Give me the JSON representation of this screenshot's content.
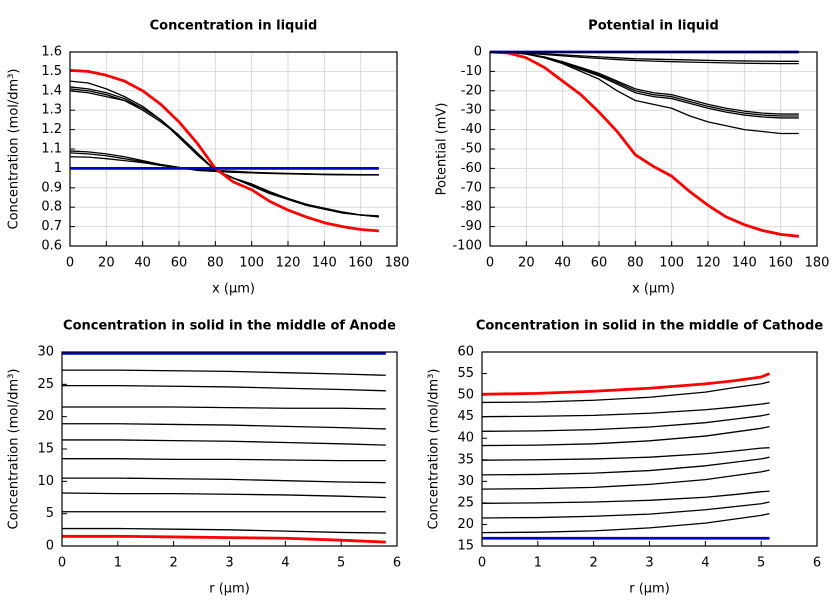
{
  "chart_data": [
    {
      "type": "line",
      "title": "Concentration in liquid",
      "xlabel": "x (µm)",
      "ylabel": "Concentration (mol/dm³)",
      "x": [
        0,
        10,
        20,
        30,
        40,
        50,
        60,
        70,
        80,
        90,
        100,
        110,
        120,
        130,
        140,
        150,
        160,
        170
      ],
      "xlim": [
        0,
        180
      ],
      "xticks": [
        0,
        20,
        40,
        60,
        80,
        100,
        120,
        140,
        160,
        180
      ],
      "ylim": [
        0.6,
        1.6
      ],
      "yticks": [
        0.6,
        0.7,
        0.8,
        0.9,
        1,
        1.1,
        1.2,
        1.3,
        1.4,
        1.5,
        1.6
      ],
      "grid": true,
      "series": [
        {
          "color": "#000000",
          "values": [
            1.45,
            1.44,
            1.41,
            1.37,
            1.32,
            1.25,
            1.16,
            1.07,
            0.99,
            0.95,
            0.91,
            0.87,
            0.84,
            0.81,
            0.79,
            0.77,
            0.76,
            0.755
          ]
        },
        {
          "color": "#000000",
          "values": [
            1.42,
            1.41,
            1.39,
            1.36,
            1.31,
            1.25,
            1.17,
            1.08,
            0.99,
            0.95,
            0.915,
            0.875,
            0.84,
            0.81,
            0.79,
            0.775,
            0.76,
            0.75
          ]
        },
        {
          "color": "#000000",
          "values": [
            1.41,
            1.4,
            1.38,
            1.35,
            1.31,
            1.25,
            1.17,
            1.08,
            0.99,
            0.95,
            0.915,
            0.875,
            0.845,
            0.815,
            0.79,
            0.77,
            0.76,
            0.75
          ]
        },
        {
          "color": "#000000",
          "values": [
            1.4,
            1.39,
            1.37,
            1.35,
            1.3,
            1.24,
            1.17,
            1.08,
            0.99,
            0.95,
            0.92,
            0.88,
            0.845,
            0.815,
            0.795,
            0.775,
            0.76,
            0.752
          ]
        },
        {
          "color": "#000000",
          "values": [
            1.09,
            1.085,
            1.075,
            1.06,
            1.04,
            1.02,
            1.005,
            0.99,
            0.985,
            0.98,
            0.978,
            0.975,
            0.973,
            0.971,
            0.969,
            0.968,
            0.967,
            0.967
          ]
        },
        {
          "color": "#000000",
          "values": [
            1.08,
            1.075,
            1.065,
            1.05,
            1.035,
            1.02,
            1.005,
            0.99,
            0.985,
            0.98,
            0.977,
            0.974,
            0.972,
            0.97,
            0.968,
            0.967,
            0.966,
            0.966
          ]
        },
        {
          "color": "#000000",
          "values": [
            1.06,
            1.058,
            1.05,
            1.04,
            1.03,
            1.015,
            1.003,
            0.995,
            0.99,
            0.985,
            0.98,
            0.977,
            0.974,
            0.972,
            0.97,
            0.969,
            0.968,
            0.967
          ]
        },
        {
          "color": "#ff0000",
          "values": [
            1.505,
            1.5,
            1.48,
            1.45,
            1.4,
            1.33,
            1.24,
            1.13,
            1,
            0.93,
            0.89,
            0.83,
            0.785,
            0.75,
            0.72,
            0.7,
            0.685,
            0.678
          ]
        },
        {
          "color": "#0000cc",
          "values": [
            1,
            1,
            1,
            1,
            1,
            1,
            1,
            1,
            1,
            1,
            1,
            1,
            1,
            1,
            1,
            1,
            1,
            1
          ]
        }
      ]
    },
    {
      "type": "line",
      "title": "Potential in liquid",
      "xlabel": "x (µm)",
      "ylabel": "Potential (mV)",
      "x": [
        0,
        10,
        20,
        30,
        40,
        50,
        60,
        70,
        80,
        90,
        100,
        110,
        120,
        130,
        140,
        150,
        160,
        170
      ],
      "xlim": [
        0,
        180
      ],
      "xticks": [
        0,
        20,
        40,
        60,
        80,
        100,
        120,
        140,
        160,
        180
      ],
      "ylim": [
        -100,
        0
      ],
      "yticks": [
        0,
        -10,
        -20,
        -30,
        -40,
        -50,
        -60,
        -70,
        -80,
        -90,
        -100
      ],
      "grid": true,
      "series": [
        {
          "color": "#000000",
          "values": [
            0,
            0,
            -0.5,
            -1,
            -1.5,
            -2,
            -2.5,
            -3,
            -3.5,
            -3.7,
            -3.9,
            -4.1,
            -4.3,
            -4.5,
            -4.6,
            -4.7,
            -4.8,
            -4.8
          ]
        },
        {
          "color": "#000000",
          "values": [
            0,
            0,
            -0.6,
            -1.3,
            -2,
            -2.7,
            -3.3,
            -3.9,
            -4.4,
            -4.7,
            -5,
            -5.2,
            -5.4,
            -5.6,
            -5.8,
            -5.9,
            -6,
            -6
          ]
        },
        {
          "color": "#000000",
          "values": [
            0,
            0,
            -1,
            -2.5,
            -5,
            -8,
            -11,
            -15,
            -19,
            -21,
            -22,
            -24.5,
            -27,
            -29,
            -30.5,
            -31.5,
            -32,
            -32
          ]
        },
        {
          "color": "#000000",
          "values": [
            0,
            0,
            -1,
            -2.7,
            -5.3,
            -8.5,
            -11.7,
            -15.8,
            -20,
            -22,
            -23,
            -25.5,
            -28,
            -30,
            -31.5,
            -32.5,
            -33,
            -33
          ]
        },
        {
          "color": "#000000",
          "values": [
            0,
            0,
            -1.1,
            -2.9,
            -5.6,
            -9,
            -12.3,
            -16.6,
            -21,
            -23,
            -24,
            -26.5,
            -29,
            -31,
            -32.5,
            -33.5,
            -34,
            -34
          ]
        },
        {
          "color": "#000000",
          "values": [
            0,
            0,
            -1,
            -3,
            -6,
            -10,
            -14,
            -20,
            -25,
            -27,
            -29,
            -33,
            -36,
            -38,
            -40,
            -41,
            -42,
            -42
          ]
        },
        {
          "color": "#ff0000",
          "values": [
            0,
            -0.5,
            -3,
            -8,
            -15,
            -22,
            -31,
            -41,
            -53,
            -59,
            -64,
            -72,
            -79,
            -85,
            -89,
            -92,
            -94,
            -95
          ]
        },
        {
          "color": "#0000cc",
          "values": [
            0,
            0,
            0,
            0,
            0,
            0,
            0,
            0,
            0,
            0,
            0,
            0,
            0,
            0,
            0,
            0,
            0,
            0
          ]
        }
      ]
    },
    {
      "type": "line",
      "title": "Concentration in solid in the middle of Anode",
      "xlabel": "r (µm)",
      "ylabel": "Concentration (mol/dm³)",
      "x": [
        0,
        1,
        2,
        3,
        4,
        5,
        5.8
      ],
      "xlim": [
        0,
        6
      ],
      "xticks": [
        0,
        1,
        2,
        3,
        4,
        5,
        6
      ],
      "ylim": [
        0,
        30
      ],
      "yticks": [
        0,
        5,
        10,
        15,
        20,
        25,
        30
      ],
      "grid": false,
      "series": [
        {
          "color": "#0000cc",
          "values": [
            29.8,
            29.8,
            29.8,
            29.8,
            29.8,
            29.8,
            29.8
          ]
        },
        {
          "color": "#000000",
          "values": [
            27.2,
            27.2,
            27.1,
            27,
            26.8,
            26.6,
            26.4
          ]
        },
        {
          "color": "#000000",
          "values": [
            24.8,
            24.8,
            24.7,
            24.6,
            24.4,
            24.2,
            24
          ]
        },
        {
          "color": "#000000",
          "values": [
            21.5,
            21.5,
            21.5,
            21.4,
            21.3,
            21.3,
            21.2
          ]
        },
        {
          "color": "#000000",
          "values": [
            18.9,
            18.9,
            18.8,
            18.7,
            18.5,
            18.3,
            18.1
          ]
        },
        {
          "color": "#000000",
          "values": [
            16.4,
            16.4,
            16.3,
            16.2,
            16,
            15.8,
            15.6
          ]
        },
        {
          "color": "#000000",
          "values": [
            13.5,
            13.5,
            13.4,
            13.4,
            13.3,
            13.2,
            13.2
          ]
        },
        {
          "color": "#000000",
          "values": [
            10.5,
            10.5,
            10.4,
            10.3,
            10.1,
            9.9,
            9.8
          ]
        },
        {
          "color": "#000000",
          "values": [
            8.2,
            8.1,
            8.1,
            8,
            7.9,
            7.7,
            7.5
          ]
        },
        {
          "color": "#000000",
          "values": [
            5.3,
            5.3,
            5.3,
            5.3,
            5.3,
            5.3,
            5.3
          ]
        },
        {
          "color": "#000000",
          "values": [
            2.7,
            2.7,
            2.6,
            2.5,
            2.3,
            2.1,
            2
          ]
        },
        {
          "color": "#ff0000",
          "values": [
            1.5,
            1.5,
            1.4,
            1.3,
            1.2,
            0.9,
            0.6
          ]
        }
      ]
    },
    {
      "type": "line",
      "title": "Concentration in solid in the middle of Cathode",
      "xlabel": "r (µm)",
      "ylabel": "Concentration (mol/dm³)",
      "x": [
        0,
        1,
        2,
        3,
        4,
        4.5,
        5,
        5.15
      ],
      "xlim": [
        0,
        6
      ],
      "xticks": [
        0,
        1,
        2,
        3,
        4,
        5,
        6
      ],
      "ylim": [
        15,
        60
      ],
      "yticks": [
        15,
        20,
        25,
        30,
        35,
        40,
        45,
        50,
        55,
        60
      ],
      "grid": false,
      "series": [
        {
          "color": "#ff0000",
          "values": [
            50.2,
            50.4,
            50.9,
            51.6,
            52.6,
            53.3,
            54.2,
            55
          ]
        },
        {
          "color": "#000000",
          "values": [
            48.3,
            48.4,
            48.8,
            49.5,
            50.7,
            51.7,
            52.6,
            53.1
          ]
        },
        {
          "color": "#000000",
          "values": [
            45,
            45.1,
            45.3,
            45.8,
            46.6,
            47.2,
            47.9,
            48.2
          ]
        },
        {
          "color": "#000000",
          "values": [
            41.6,
            41.7,
            42,
            42.6,
            43.6,
            44.4,
            45.2,
            45.6
          ]
        },
        {
          "color": "#000000",
          "values": [
            38.3,
            38.4,
            38.7,
            39.4,
            40.5,
            41.4,
            42.3,
            42.7
          ]
        },
        {
          "color": "#000000",
          "values": [
            34.9,
            35,
            35.2,
            35.6,
            36.4,
            37,
            37.7,
            37.8
          ]
        },
        {
          "color": "#000000",
          "values": [
            31.5,
            31.6,
            31.9,
            32.5,
            33.6,
            34.4,
            35.2,
            35.6
          ]
        },
        {
          "color": "#000000",
          "values": [
            28.2,
            28.3,
            28.6,
            29.3,
            30.4,
            31.3,
            32.2,
            32.6
          ]
        },
        {
          "color": "#000000",
          "values": [
            24.9,
            25,
            25.2,
            25.6,
            26.3,
            26.9,
            27.6,
            27.7
          ]
        },
        {
          "color": "#000000",
          "values": [
            21.5,
            21.6,
            21.9,
            22.4,
            23.4,
            24.1,
            24.8,
            25.2
          ]
        },
        {
          "color": "#000000",
          "values": [
            18.1,
            18.2,
            18.5,
            19.2,
            20.3,
            21.2,
            22.1,
            22.5
          ]
        },
        {
          "color": "#0000cc",
          "values": [
            16.8,
            16.8,
            16.8,
            16.8,
            16.8,
            16.8,
            16.8,
            16.8
          ]
        }
      ]
    }
  ]
}
